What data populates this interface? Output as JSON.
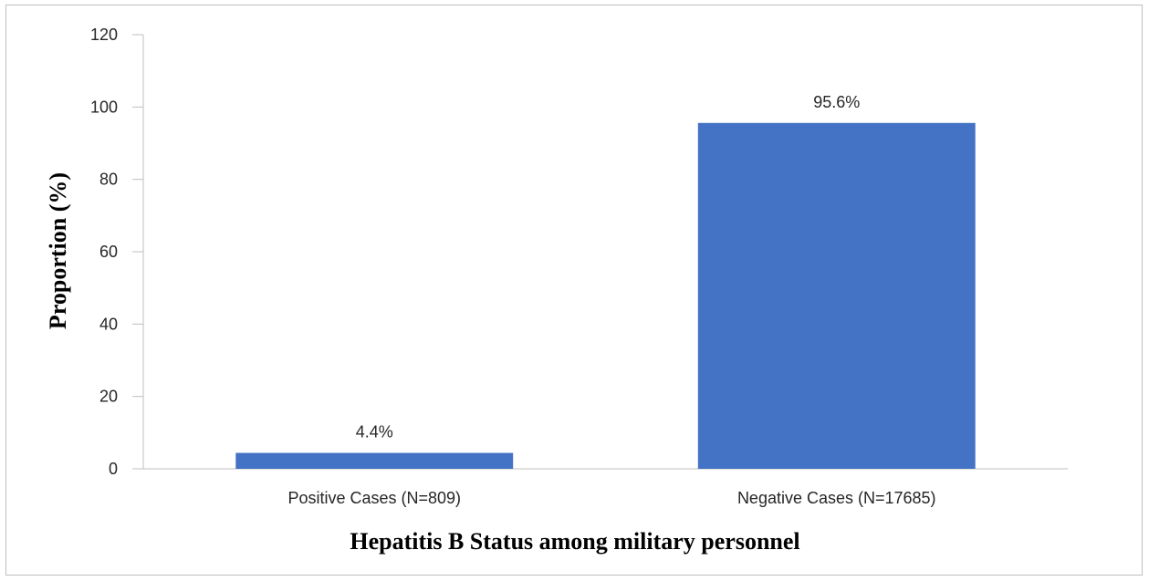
{
  "chart_data": {
    "type": "bar",
    "title": "",
    "xlabel": "Hepatitis B Status among military personnel",
    "ylabel": "Proportion (%)",
    "ylim": [
      0,
      120
    ],
    "yticks": [
      0,
      20,
      40,
      60,
      80,
      100,
      120
    ],
    "categories": [
      "Positive Cases (N=809)",
      "Negative Cases (N=17685)"
    ],
    "values": [
      4.4,
      95.6
    ],
    "data_labels": [
      "4.4%",
      "95.6%"
    ],
    "bar_color": "#4472C4",
    "grid": false,
    "legend": "none"
  }
}
